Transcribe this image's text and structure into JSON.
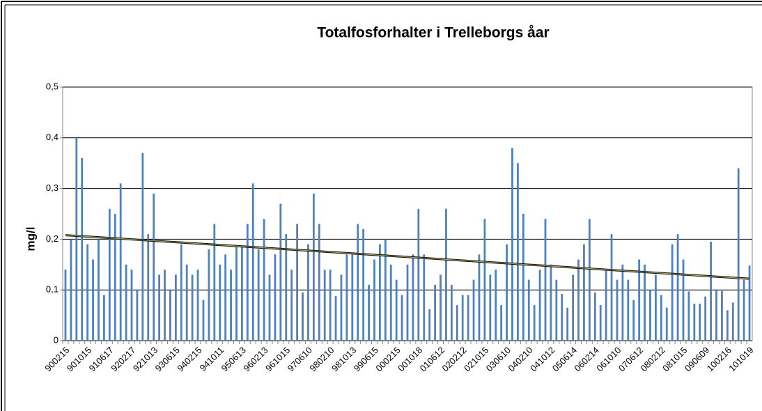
{
  "chart_data": {
    "type": "bar",
    "title": "Totalfosforhalter i Trelleborgs åar",
    "y_label": "mg/l",
    "categories": [
      "900215",
      null,
      null,
      null,
      "901015",
      null,
      null,
      null,
      "910617",
      null,
      null,
      null,
      "920217",
      null,
      null,
      null,
      "921013",
      null,
      null,
      null,
      "930615",
      null,
      null,
      null,
      "940215",
      null,
      null,
      null,
      "941011",
      null,
      null,
      null,
      "950613",
      null,
      null,
      null,
      "960213",
      null,
      null,
      null,
      "961015",
      null,
      null,
      null,
      "970610",
      null,
      null,
      null,
      "980210",
      null,
      null,
      null,
      "981013",
      null,
      null,
      null,
      "990615",
      null,
      null,
      null,
      "000215",
      null,
      null,
      null,
      "001018",
      null,
      null,
      null,
      "010612",
      null,
      null,
      null,
      "020212",
      null,
      null,
      null,
      "021015",
      null,
      null,
      null,
      "030610",
      null,
      null,
      null,
      "040210",
      null,
      null,
      null,
      "041012",
      null,
      null,
      null,
      "050614",
      null,
      null,
      null,
      "060214",
      null,
      null,
      null,
      "061010",
      null,
      null,
      null,
      "070612",
      null,
      null,
      null,
      "080212",
      null,
      null,
      null,
      "081015",
      null,
      null,
      null,
      "090609",
      null,
      null,
      null,
      "100216",
      null,
      null,
      null,
      "101019"
    ],
    "values": [
      0.14,
      0.2,
      0.4,
      0.36,
      0.19,
      0.16,
      0.2,
      0.09,
      0.26,
      0.25,
      0.31,
      0.15,
      0.14,
      0.1,
      0.37,
      0.21,
      0.29,
      0.13,
      0.14,
      0.1,
      0.13,
      0.19,
      0.15,
      0.13,
      0.14,
      0.08,
      0.18,
      0.23,
      0.15,
      0.17,
      0.14,
      0.185,
      0.185,
      0.23,
      0.31,
      0.18,
      0.24,
      0.13,
      0.17,
      0.27,
      0.21,
      0.14,
      0.23,
      0.095,
      0.19,
      0.29,
      0.23,
      0.14,
      0.14,
      0.088,
      0.13,
      0.17,
      0.17,
      0.23,
      0.22,
      0.11,
      0.16,
      0.19,
      0.2,
      0.15,
      0.12,
      0.09,
      0.15,
      0.17,
      0.26,
      0.17,
      0.062,
      0.11,
      0.13,
      0.26,
      0.11,
      0.07,
      0.09,
      0.09,
      0.12,
      0.17,
      0.24,
      0.13,
      0.14,
      0.07,
      0.19,
      0.38,
      0.35,
      0.25,
      0.12,
      0.07,
      0.14,
      0.24,
      0.15,
      0.12,
      0.092,
      0.065,
      0.13,
      0.16,
      0.19,
      0.24,
      0.095,
      0.07,
      0.14,
      0.21,
      0.12,
      0.15,
      0.12,
      0.08,
      0.16,
      0.15,
      0.1,
      0.13,
      0.09,
      0.065,
      0.19,
      0.21,
      0.16,
      0.097,
      0.073,
      0.073,
      0.087,
      0.195,
      0.1,
      0.098,
      0.06,
      0.075,
      0.34,
      0.12,
      0.148
    ],
    "color": "#4f81bd",
    "trendline": {
      "values": [
        0.208,
        0.122
      ],
      "color": "#1a1a1a"
    },
    "ylim": [
      0,
      0.5
    ],
    "yticks": [
      0,
      {
        "value": 0.1,
        "label": "0,1"
      },
      {
        "value": 0.2,
        "label": "0,2"
      },
      {
        "value": 0.3,
        "label": "0,3"
      },
      {
        "value": 0.4,
        "label": "0,4"
      },
      {
        "value": 0.5,
        "label": "0,5"
      }
    ],
    "grid": true
  }
}
